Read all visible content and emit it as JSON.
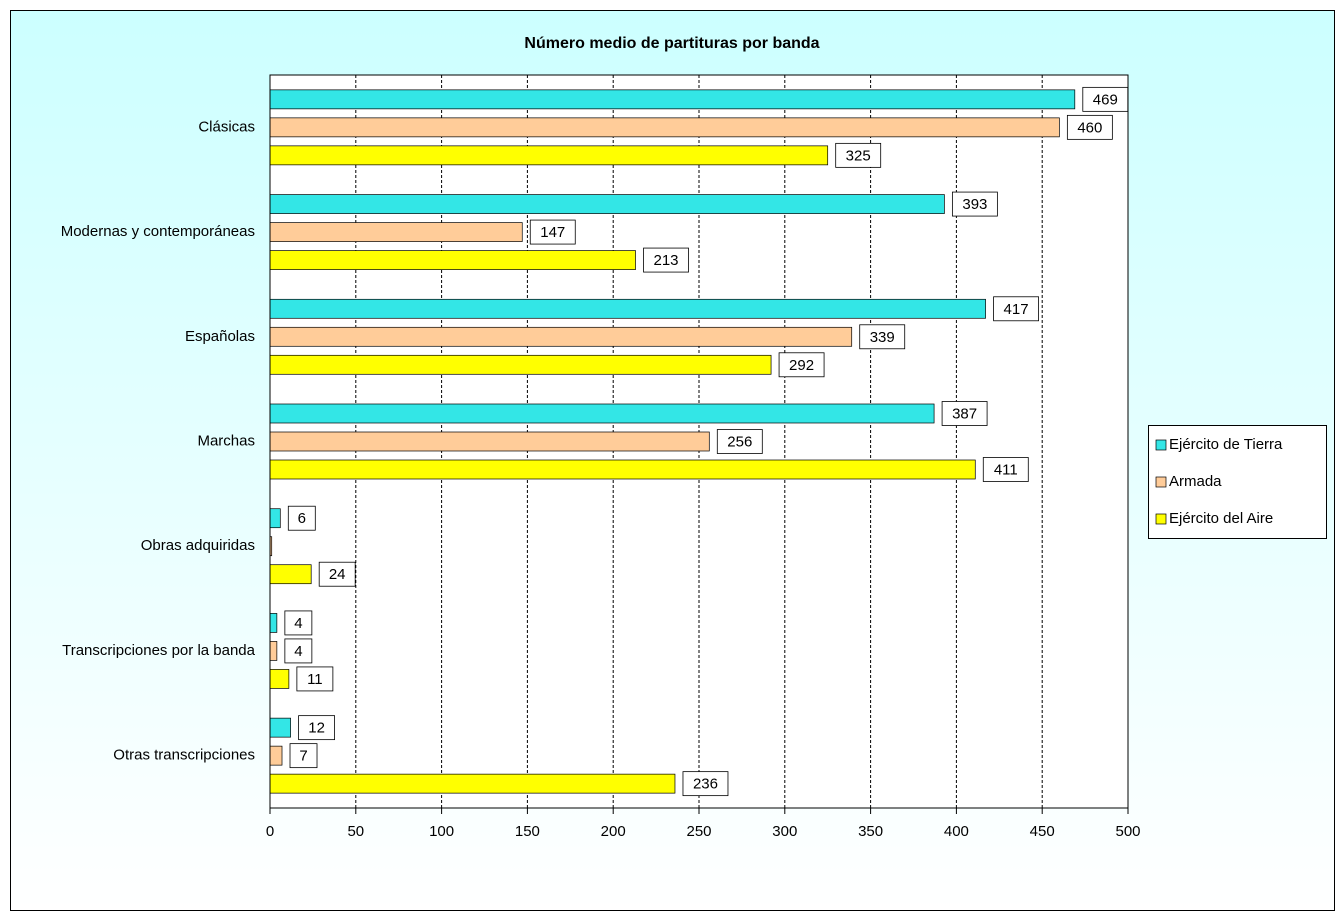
{
  "chart_data": {
    "type": "bar",
    "orientation": "horizontal",
    "title": "Número medio de partituras por banda",
    "categories": [
      "Clásicas",
      "Modernas y contemporáneas",
      "Españolas",
      "Marchas",
      "Obras adquiridas",
      "Transcripciones por la banda",
      "Otras transcripciones"
    ],
    "series": [
      {
        "name": "Ejército de Tierra",
        "color": "#33e6e6",
        "values": [
          469,
          393,
          417,
          387,
          6,
          4,
          12
        ],
        "value_labels": [
          "469",
          "393",
          "417",
          "387",
          "6",
          "4",
          "12"
        ]
      },
      {
        "name": "Armada",
        "color": "#ffcc99",
        "values": [
          460,
          147,
          339,
          256,
          1,
          4,
          7
        ],
        "value_labels": [
          "460",
          "147",
          "339",
          "256",
          null,
          "4",
          "7"
        ]
      },
      {
        "name": "Ejército del Aire",
        "color": "#ffff00",
        "values": [
          325,
          213,
          292,
          411,
          24,
          11,
          236
        ],
        "value_labels": [
          "325",
          "213",
          "292",
          "411",
          "24",
          "11",
          "236"
        ]
      }
    ],
    "xlim": [
      0,
      500
    ],
    "xticks": [
      0,
      50,
      100,
      150,
      200,
      250,
      300,
      350,
      400,
      450,
      500
    ],
    "grid": true,
    "legend": "right"
  }
}
